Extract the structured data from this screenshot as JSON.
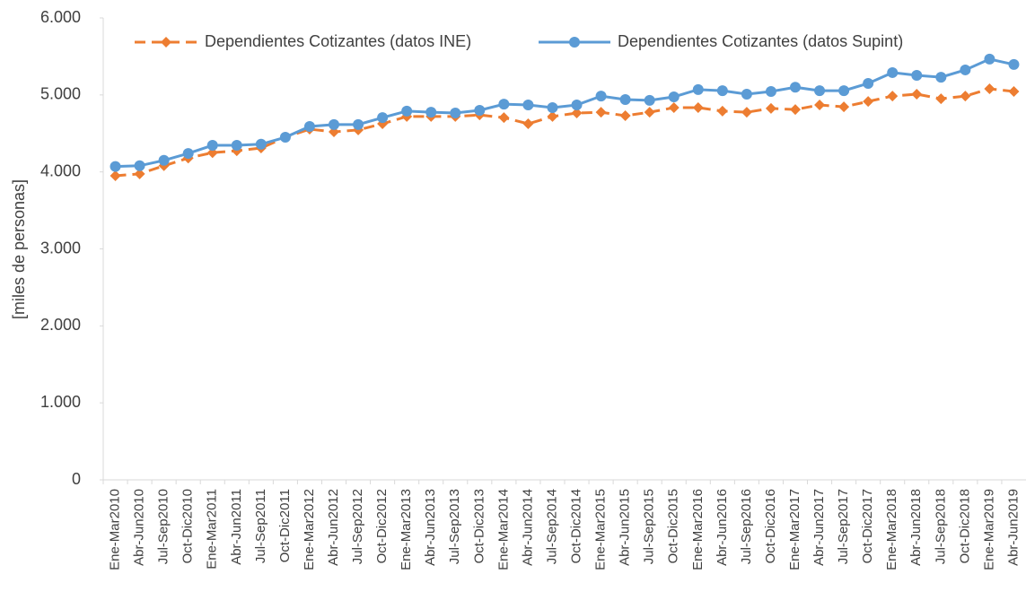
{
  "chart_data": {
    "type": "line",
    "y_label": "[miles de personas]",
    "categories": [
      "Ene-Mar2010",
      "Abr-Jun2010",
      "Jul-Sep2010",
      "Oct-Dic2010",
      "Ene-Mar2011",
      "Abr-Jun2011",
      "Jul-Sep2011",
      "Oct-Dic2011",
      "Ene-Mar2012",
      "Abr-Jun2012",
      "Jul-Sep2012",
      "Oct-Dic2012",
      "Ene-Mar2013",
      "Abr-Jun2013",
      "Jul-Sep2013",
      "Oct-Dic2013",
      "Ene-Mar2014",
      "Abr-Jun2014",
      "Jul-Sep2014",
      "Oct-Dic2014",
      "Ene-Mar2015",
      "Abr-Jun2015",
      "Jul-Sep2015",
      "Oct-Dic2015",
      "Ene-Mar2016",
      "Abr-Jun2016",
      "Jul-Sep2016",
      "Oct-Dic2016",
      "Ene-Mar2017",
      "Abr-Jun2017",
      "Jul-Sep2017",
      "Oct-Dic2017",
      "Ene-Mar2018",
      "Abr-Jun2018",
      "Jul-Sep2018",
      "Oct-Dic2018",
      "Ene-Mar2019",
      "Abr-Jun2019"
    ],
    "series": [
      {
        "name": "Dependientes Cotizantes (datos INE)",
        "color": "#ed7d31",
        "dashed": true,
        "marker": "diamond",
        "values": [
          3950,
          3975,
          4080,
          4180,
          4250,
          4275,
          4310,
          4450,
          4555,
          4520,
          4545,
          4625,
          4720,
          4720,
          4720,
          4740,
          4705,
          4625,
          4720,
          4765,
          4775,
          4730,
          4775,
          4835,
          4835,
          4790,
          4775,
          4825,
          4810,
          4870,
          4845,
          4915,
          4985,
          5010,
          4950,
          4985,
          5080,
          5045
        ]
      },
      {
        "name": "Dependientes Cotizantes (datos Supint)",
        "color": "#5b9bd5",
        "dashed": false,
        "marker": "circle",
        "values": [
          4070,
          4080,
          4150,
          4240,
          4345,
          4345,
          4360,
          4450,
          4590,
          4615,
          4615,
          4705,
          4790,
          4775,
          4765,
          4800,
          4880,
          4870,
          4835,
          4870,
          4985,
          4940,
          4930,
          4975,
          5070,
          5055,
          5010,
          5045,
          5100,
          5055,
          5055,
          5150,
          5290,
          5255,
          5230,
          5325,
          5465,
          5395
        ]
      }
    ],
    "ylim": [
      0,
      6000
    ],
    "yticks": [
      0,
      {
        "value": 1000,
        "label": "1.000"
      },
      {
        "value": 2000,
        "label": "2.000"
      },
      {
        "value": 3000,
        "label": "3.000"
      },
      {
        "value": 4000,
        "label": "4.000"
      },
      {
        "value": 5000,
        "label": "5.000"
      },
      {
        "value": 6000,
        "label": "6.000"
      }
    ],
    "grid": false
  }
}
